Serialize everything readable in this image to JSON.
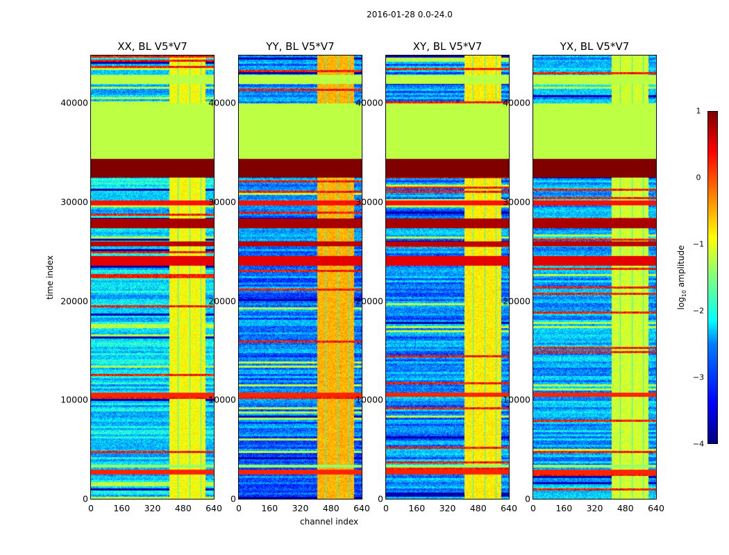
{
  "chart_data": {
    "type": "heatmap",
    "title": "2016-01-28 0.0-24.0",
    "xlabel": "channel index",
    "ylabel": "time index",
    "xlim": [
      0,
      640
    ],
    "ylim": [
      0,
      44800
    ],
    "xticks": [
      "0",
      "160",
      "320",
      "480",
      "640"
    ],
    "yticks": [
      "0",
      "10000",
      "20000",
      "30000",
      "40000"
    ],
    "colorbar": {
      "label": "log10 amplitude",
      "range": [
        -4,
        1
      ],
      "ticks": [
        "1",
        "0",
        "−1",
        "−2",
        "−3",
        "−4"
      ]
    },
    "panels": [
      {
        "title": "XX, BL V5*V7",
        "base": -2.3,
        "bright_channels": [
          405,
          595
        ],
        "bright_level": -0.9
      },
      {
        "title": "YY, BL V5*V7",
        "base": -2.8,
        "bright_channels": [
          405,
          600
        ],
        "bright_level": -0.5
      },
      {
        "title": "XY, BL V5*V7",
        "base": -2.7,
        "bright_channels": [
          405,
          600
        ],
        "bright_level": -0.8
      },
      {
        "title": "YX, BL V5*V7",
        "base": -2.5,
        "bright_channels": [
          405,
          600
        ],
        "bright_level": -1.1
      }
    ],
    "bands": [
      [
        32400,
        34300,
        1.0
      ],
      [
        34300,
        39900,
        -1.2
      ],
      [
        41900,
        42800,
        -1.2
      ],
      [
        27300,
        28300,
        0.8
      ],
      [
        25500,
        26000,
        0.7
      ],
      [
        23500,
        24500,
        0.5
      ],
      [
        10300,
        10700,
        0.2
      ],
      [
        2400,
        2900,
        0.2
      ],
      [
        3100,
        3400,
        -1.4
      ],
      [
        29600,
        30100,
        0.3
      ]
    ]
  }
}
